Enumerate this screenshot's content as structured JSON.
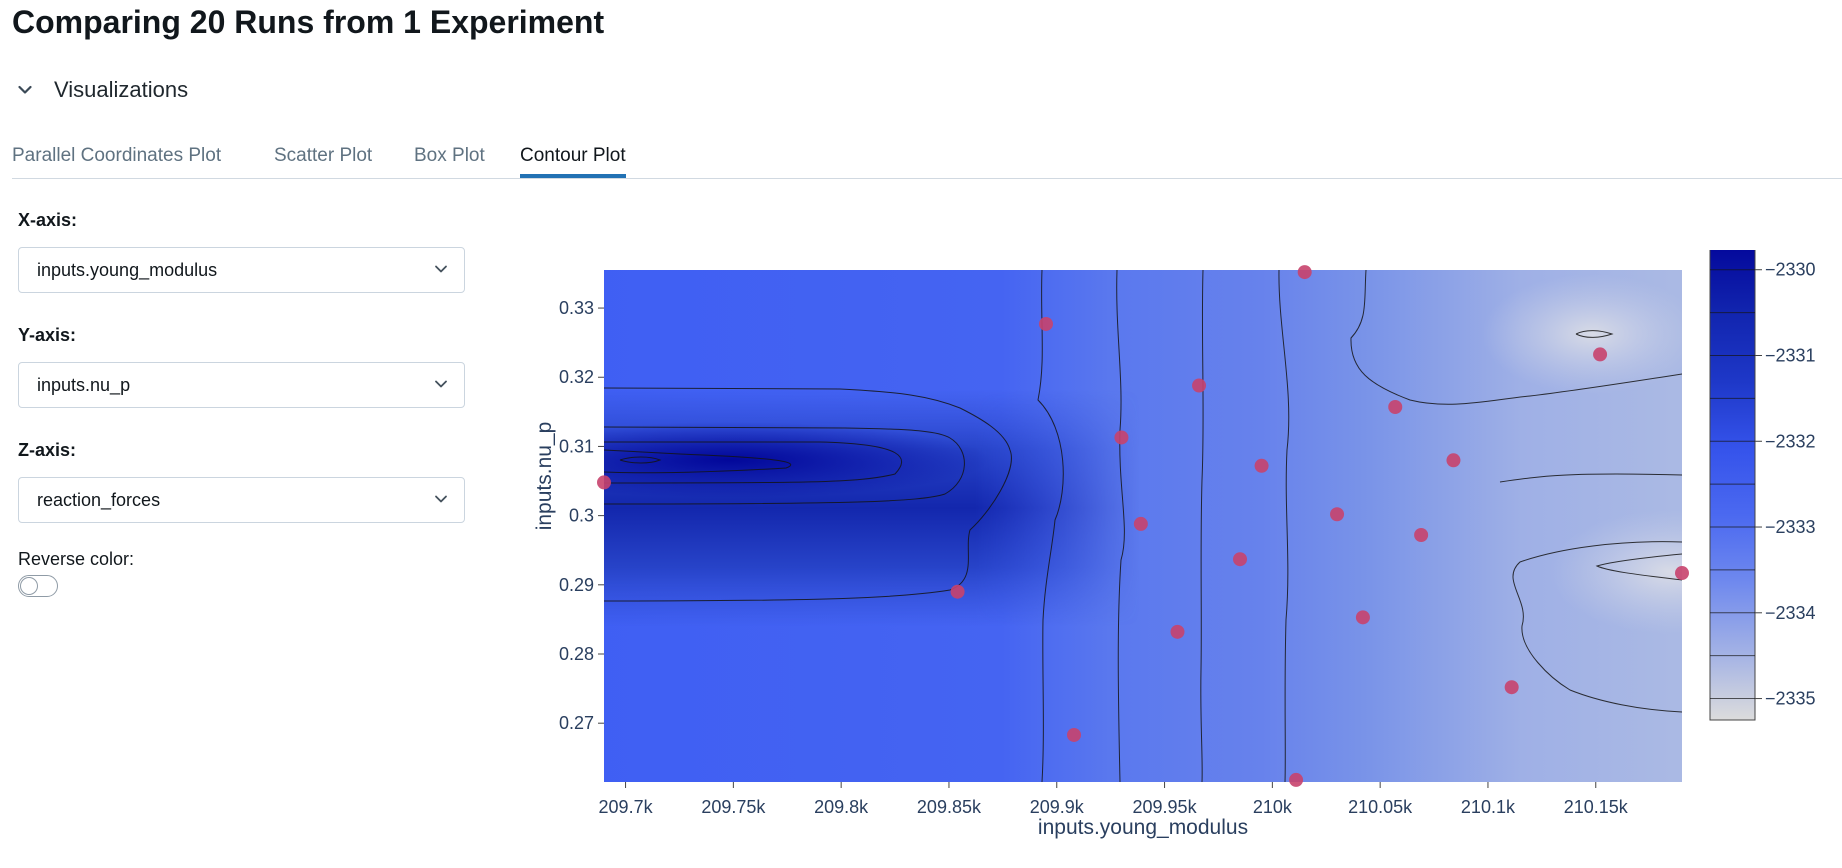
{
  "page": {
    "title": "Comparing 20 Runs from 1 Experiment"
  },
  "section": {
    "label": "Visualizations",
    "icon": "chevron-down-icon"
  },
  "tabs": [
    {
      "label": "Parallel Coordinates Plot",
      "active": false
    },
    {
      "label": "Scatter Plot",
      "active": false
    },
    {
      "label": "Box Plot",
      "active": false
    },
    {
      "label": "Contour Plot",
      "active": true
    }
  ],
  "controls": {
    "x_axis": {
      "label": "X-axis:",
      "value": "inputs.young_modulus"
    },
    "y_axis": {
      "label": "Y-axis:",
      "value": "inputs.nu_p"
    },
    "z_axis": {
      "label": "Z-axis:",
      "value": "reaction_forces"
    },
    "reverse_color": {
      "label": "Reverse color:",
      "on": false
    }
  },
  "colors": {
    "accent": "#2272b4",
    "points": "#c8436d",
    "colorscale": [
      "#03099a",
      "#152cb8",
      "#2140d7",
      "#3d5ff2",
      "#5c7af0",
      "#7f97ee",
      "#a4b3e5",
      "#dcdcdc"
    ]
  },
  "chart_data": {
    "type": "contour",
    "xlabel": "inputs.young_modulus",
    "ylabel": "inputs.nu_p",
    "xlim": [
      209690,
      210190
    ],
    "ylim": [
      0.2615,
      0.3355
    ],
    "x_ticks": [
      {
        "value": 209700,
        "label": "209.7k"
      },
      {
        "value": 209750,
        "label": "209.75k"
      },
      {
        "value": 209800,
        "label": "209.8k"
      },
      {
        "value": 209850,
        "label": "209.85k"
      },
      {
        "value": 209900,
        "label": "209.9k"
      },
      {
        "value": 209950,
        "label": "209.95k"
      },
      {
        "value": 210000,
        "label": "210k"
      },
      {
        "value": 210050,
        "label": "210.05k"
      },
      {
        "value": 210100,
        "label": "210.1k"
      },
      {
        "value": 210150,
        "label": "210.15k"
      }
    ],
    "y_ticks": [
      {
        "value": 0.27,
        "label": "0.27"
      },
      {
        "value": 0.28,
        "label": "0.28"
      },
      {
        "value": 0.29,
        "label": "0.29"
      },
      {
        "value": 0.3,
        "label": "0.3"
      },
      {
        "value": 0.31,
        "label": "0.31"
      },
      {
        "value": 0.32,
        "label": "0.32"
      },
      {
        "value": 0.33,
        "label": "0.33"
      }
    ],
    "colorbar": {
      "range": [
        -2335.25,
        -2329.7
      ],
      "levels": [
        -2330,
        -2330.5,
        -2331,
        -2331.5,
        -2332,
        -2332.5,
        -2333,
        -2333.5,
        -2334,
        -2334.5,
        -2335
      ],
      "ticks": [
        {
          "value": -2330,
          "label": "−2330"
        },
        {
          "value": -2331,
          "label": "−2331"
        },
        {
          "value": -2332,
          "label": "−2332"
        },
        {
          "value": -2333,
          "label": "−2333"
        },
        {
          "value": -2334,
          "label": "−2334"
        },
        {
          "value": -2335,
          "label": "−2335"
        }
      ]
    },
    "points": [
      {
        "x": 209690,
        "y": 0.3048
      },
      {
        "x": 209854,
        "y": 0.289
      },
      {
        "x": 209895,
        "y": 0.3277
      },
      {
        "x": 209908,
        "y": 0.2683
      },
      {
        "x": 209930,
        "y": 0.3113
      },
      {
        "x": 209939,
        "y": 0.2988
      },
      {
        "x": 209956,
        "y": 0.2832
      },
      {
        "x": 209966,
        "y": 0.3188
      },
      {
        "x": 209985,
        "y": 0.2937
      },
      {
        "x": 209995,
        "y": 0.3072
      },
      {
        "x": 210011,
        "y": 0.2618
      },
      {
        "x": 210015,
        "y": 0.3352
      },
      {
        "x": 210030,
        "y": 0.3002
      },
      {
        "x": 210042,
        "y": 0.2853
      },
      {
        "x": 210057,
        "y": 0.3157
      },
      {
        "x": 210069,
        "y": 0.2972
      },
      {
        "x": 210084,
        "y": 0.308
      },
      {
        "x": 210111,
        "y": 0.2752
      },
      {
        "x": 210152,
        "y": 0.3233
      },
      {
        "x": 210190,
        "y": 0.2917
      }
    ]
  }
}
